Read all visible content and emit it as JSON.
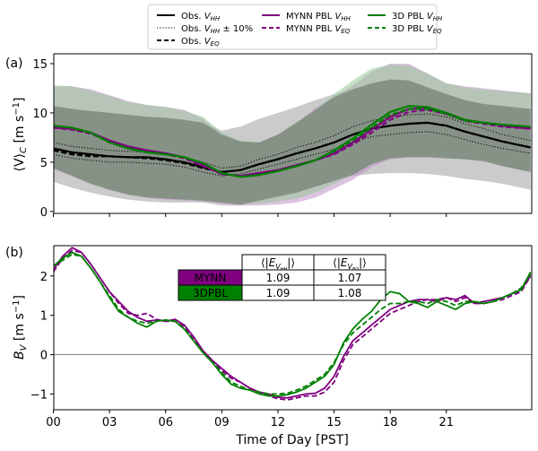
{
  "chart_data": [
    {
      "panel_label": "(a)",
      "type": "line",
      "xlabel": "",
      "ylabel": "⟨V⟩c [m s⁻¹]",
      "xlim": [
        0,
        25.5
      ],
      "ylim": [
        -0.2,
        16
      ],
      "xticks": [
        0,
        3,
        6,
        9,
        12,
        15,
        18,
        21
      ],
      "xtick_labels": [
        "00",
        "03",
        "06",
        "09",
        "12",
        "15",
        "18",
        "21"
      ],
      "yticks": [
        0,
        5,
        10,
        15
      ],
      "ytick_labels": [
        "0",
        "5",
        "10",
        "15"
      ],
      "grid": false,
      "x": [
        0,
        1,
        2,
        3,
        4,
        5,
        6,
        7,
        8,
        9,
        10,
        11,
        12,
        13,
        14,
        15,
        16,
        17,
        18,
        19,
        20,
        21,
        22,
        23,
        24,
        25.5
      ],
      "series": [
        {
          "name": "Obs. V_HH",
          "color": "#000000",
          "style": "solid",
          "values": [
            6.4,
            6.0,
            5.8,
            5.6,
            5.5,
            5.5,
            5.3,
            5.0,
            4.5,
            4.0,
            4.2,
            4.8,
            5.3,
            5.9,
            6.4,
            7.0,
            7.8,
            8.4,
            8.7,
            8.9,
            9.0,
            8.7,
            8.1,
            7.6,
            7.1,
            6.5
          ]
        },
        {
          "name": "Obs. V_HH ± 10% (upper)",
          "color": "#000000",
          "style": "dotted",
          "values": [
            7.0,
            6.6,
            6.4,
            6.2,
            6.1,
            6.0,
            5.8,
            5.5,
            5.0,
            4.4,
            4.6,
            5.3,
            5.8,
            6.5,
            7.0,
            7.7,
            8.6,
            9.2,
            9.6,
            9.8,
            9.9,
            9.6,
            8.9,
            8.4,
            7.8,
            7.2
          ]
        },
        {
          "name": "Obs. V_HH ± 10% (lower)",
          "color": "#000000",
          "style": "dotted",
          "values": [
            5.8,
            5.4,
            5.2,
            5.0,
            5.0,
            4.9,
            4.8,
            4.5,
            4.0,
            3.6,
            3.8,
            4.3,
            4.8,
            5.3,
            5.8,
            6.3,
            7.0,
            7.6,
            7.8,
            8.0,
            8.1,
            7.8,
            7.3,
            6.8,
            6.4,
            5.9
          ]
        },
        {
          "name": "Obs. V_EQ",
          "color": "#000000",
          "style": "dashed",
          "values": [
            6.2,
            5.8,
            5.6,
            5.6,
            5.5,
            5.4,
            5.2,
            4.9,
            4.4,
            4.0,
            4.2,
            4.8,
            5.3,
            5.9,
            6.4,
            7.0,
            7.8,
            8.4,
            8.7,
            8.9,
            9.0,
            8.7,
            8.1,
            7.6,
            7.1,
            6.5
          ]
        },
        {
          "name": "MYNN PBL V_HH",
          "color": "#800080",
          "style": "solid",
          "values": [
            8.5,
            8.4,
            8.0,
            7.2,
            6.6,
            6.2,
            5.9,
            5.5,
            4.7,
            3.8,
            3.6,
            3.9,
            4.2,
            4.7,
            5.2,
            5.9,
            7.0,
            8.3,
            9.6,
            10.4,
            10.5,
            10.0,
            9.3,
            9.0,
            8.7,
            8.4
          ]
        },
        {
          "name": "MYNN PBL V_EQ",
          "color": "#800080",
          "style": "dashed",
          "values": [
            8.5,
            8.3,
            7.9,
            7.1,
            6.5,
            6.1,
            5.8,
            5.4,
            4.6,
            3.8,
            3.6,
            3.9,
            4.2,
            4.7,
            5.2,
            5.8,
            6.8,
            8.0,
            9.3,
            10.1,
            10.3,
            9.9,
            9.2,
            8.9,
            8.6,
            8.4
          ]
        },
        {
          "name": "3D PBL V_HH",
          "color": "#008000",
          "style": "solid",
          "values": [
            8.7,
            8.5,
            8.0,
            7.0,
            6.4,
            6.0,
            5.8,
            5.5,
            4.9,
            3.9,
            3.5,
            3.7,
            4.1,
            4.6,
            5.2,
            6.2,
            7.4,
            8.8,
            10.1,
            10.7,
            10.6,
            10.0,
            9.3,
            9.0,
            8.8,
            8.6
          ]
        },
        {
          "name": "3D PBL V_EQ",
          "color": "#008000",
          "style": "dashed",
          "values": [
            8.7,
            8.5,
            8.0,
            7.0,
            6.4,
            6.0,
            5.8,
            5.5,
            4.9,
            3.9,
            3.5,
            3.7,
            4.1,
            4.6,
            5.2,
            6.1,
            7.2,
            8.5,
            9.8,
            10.4,
            10.4,
            9.9,
            9.2,
            9.0,
            8.8,
            8.6
          ]
        }
      ],
      "bands": [
        {
          "name": "Obs. spread",
          "color": "#a0a0a0",
          "upper": [
            10.7,
            10.4,
            10.2,
            10.0,
            9.8,
            9.6,
            9.5,
            9.3,
            9.0,
            8.2,
            8.6,
            9.4,
            10.0,
            10.6,
            11.3,
            11.9,
            12.4,
            13.0,
            13.4,
            13.3,
            12.6,
            11.9,
            11.3,
            10.9,
            10.7,
            10.4
          ],
          "lower": [
            3.0,
            2.4,
            1.9,
            1.5,
            1.2,
            1.0,
            0.9,
            0.9,
            0.9,
            0.6,
            0.6,
            1.1,
            1.5,
            1.9,
            2.5,
            3.1,
            3.6,
            3.8,
            3.9,
            3.9,
            3.8,
            3.6,
            3.3,
            3.1,
            2.8,
            2.2
          ]
        },
        {
          "name": "MYNN PBL spread",
          "color": "#c090c8",
          "upper": [
            12.7,
            12.7,
            12.4,
            11.8,
            11.2,
            10.8,
            10.6,
            10.3,
            9.4,
            7.8,
            7.1,
            7.0,
            7.8,
            9.0,
            10.5,
            11.6,
            12.8,
            14.2,
            15.0,
            15.0,
            14.0,
            13.0,
            12.7,
            12.5,
            12.3,
            12.0
          ],
          "lower": [
            4.3,
            3.6,
            2.8,
            2.2,
            1.7,
            1.4,
            1.2,
            1.1,
            1.0,
            0.8,
            0.6,
            0.6,
            0.7,
            0.9,
            1.4,
            2.3,
            3.2,
            4.5,
            5.3,
            5.5,
            5.5,
            5.4,
            5.3,
            5.1,
            4.6,
            4.0
          ]
        },
        {
          "name": "3D PBL spread",
          "color": "#98c898",
          "upper": [
            12.8,
            12.7,
            12.3,
            11.7,
            11.1,
            10.8,
            10.6,
            10.2,
            9.6,
            8.0,
            7.2,
            7.0,
            7.8,
            9.1,
            10.3,
            11.9,
            13.3,
            14.5,
            14.9,
            14.8,
            14.0,
            13.0,
            12.6,
            12.4,
            12.2,
            12.0
          ],
          "lower": [
            4.4,
            3.6,
            2.8,
            2.2,
            1.7,
            1.4,
            1.3,
            1.2,
            1.1,
            0.9,
            0.7,
            0.8,
            1.0,
            1.3,
            1.9,
            2.8,
            3.7,
            4.8,
            5.4,
            5.5,
            5.5,
            5.4,
            5.3,
            5.1,
            4.6,
            4.0
          ]
        }
      ],
      "legend": {
        "placement": "top-center (above plot)",
        "entries": [
          {
            "label": "Obs. V",
            "sub": "HH",
            "suffix": "",
            "color": "#000000",
            "style": "solid"
          },
          {
            "label": "Obs. V",
            "sub": "HH",
            "suffix": " ± 10%",
            "color": "#000000",
            "style": "dotted"
          },
          {
            "label": "Obs. V",
            "sub": "EQ",
            "suffix": "",
            "color": "#000000",
            "style": "dashed"
          },
          {
            "label": "MYNN PBL V",
            "sub": "HH",
            "suffix": "",
            "color": "#800080",
            "style": "solid"
          },
          {
            "label": "MYNN PBL V",
            "sub": "EQ",
            "suffix": "",
            "color": "#800080",
            "style": "dashed"
          },
          {
            "label": "3D PBL V",
            "sub": "HH",
            "suffix": "",
            "color": "#008000",
            "style": "solid"
          },
          {
            "label": "3D PBL V",
            "sub": "EQ",
            "suffix": "",
            "color": "#008000",
            "style": "dashed"
          }
        ]
      }
    },
    {
      "panel_label": "(b)",
      "type": "line",
      "xlabel": "Time of Day [PST]",
      "ylabel": "B_V [m s⁻¹]",
      "xlim": [
        0,
        25.5
      ],
      "ylim": [
        -1.4,
        2.77
      ],
      "xticks": [
        0,
        3,
        6,
        9,
        12,
        15,
        18,
        21
      ],
      "xtick_labels": [
        "00",
        "03",
        "06",
        "09",
        "12",
        "15",
        "18",
        "21"
      ],
      "yticks": [
        -1,
        0,
        1,
        2
      ],
      "ytick_labels": [
        "−1",
        "0",
        "1",
        "2"
      ],
      "hline": 0,
      "grid": false,
      "x": [
        0,
        0.5,
        1,
        1.5,
        2,
        2.5,
        3,
        3.5,
        4,
        4.5,
        5,
        5.5,
        6,
        6.5,
        7,
        7.5,
        8,
        8.5,
        9,
        9.5,
        10,
        10.5,
        11,
        11.5,
        12,
        12.5,
        13,
        13.5,
        14,
        14.5,
        15,
        15.5,
        16,
        16.5,
        17,
        17.5,
        18,
        18.5,
        19,
        19.5,
        20,
        20.5,
        21,
        21.5,
        22,
        22.5,
        23,
        23.5,
        24,
        24.5,
        25,
        25.5
      ],
      "series": [
        {
          "name": "MYNN PBL V_HH",
          "color": "#800080",
          "style": "solid",
          "values": [
            2.15,
            2.5,
            2.72,
            2.6,
            2.3,
            1.95,
            1.6,
            1.35,
            1.1,
            0.95,
            0.85,
            0.88,
            0.85,
            0.9,
            0.75,
            0.45,
            0.1,
            -0.15,
            -0.35,
            -0.55,
            -0.7,
            -0.85,
            -0.95,
            -1.0,
            -1.08,
            -1.1,
            -1.05,
            -1.0,
            -0.98,
            -0.85,
            -0.55,
            -0.05,
            0.35,
            0.55,
            0.75,
            0.95,
            1.15,
            1.25,
            1.35,
            1.4,
            1.4,
            1.35,
            1.45,
            1.4,
            1.5,
            1.3,
            1.35,
            1.4,
            1.45,
            1.55,
            1.65,
            2.0
          ]
        },
        {
          "name": "MYNN PBL V_EQ",
          "color": "#800080",
          "style": "dashed",
          "values": [
            2.1,
            2.45,
            2.65,
            2.6,
            2.3,
            1.95,
            1.6,
            1.3,
            1.05,
            1.0,
            1.05,
            0.9,
            0.85,
            0.85,
            0.7,
            0.4,
            0.05,
            -0.2,
            -0.4,
            -0.6,
            -0.7,
            -0.85,
            -0.95,
            -1.05,
            -1.12,
            -1.15,
            -1.1,
            -1.05,
            -1.05,
            -0.95,
            -0.7,
            -0.15,
            0.25,
            0.45,
            0.65,
            0.85,
            1.05,
            1.15,
            1.25,
            1.35,
            1.4,
            1.4,
            1.45,
            1.35,
            1.45,
            1.3,
            1.3,
            1.35,
            1.4,
            1.5,
            1.6,
            2.0
          ]
        },
        {
          "name": "3D PBL V_HH",
          "color": "#008000",
          "style": "solid",
          "values": [
            2.25,
            2.45,
            2.6,
            2.5,
            2.2,
            1.85,
            1.45,
            1.1,
            0.95,
            0.8,
            0.7,
            0.85,
            0.88,
            0.85,
            0.65,
            0.35,
            0.05,
            -0.2,
            -0.5,
            -0.75,
            -0.85,
            -0.9,
            -1.0,
            -1.05,
            -1.05,
            -1.02,
            -0.95,
            -0.85,
            -0.7,
            -0.55,
            -0.25,
            0.3,
            0.65,
            0.9,
            1.1,
            1.4,
            1.6,
            1.55,
            1.35,
            1.3,
            1.2,
            1.35,
            1.25,
            1.15,
            1.3,
            1.35,
            1.3,
            1.35,
            1.45,
            1.55,
            1.65,
            2.1
          ]
        },
        {
          "name": "3D PBL V_EQ",
          "color": "#008000",
          "style": "dashed",
          "values": [
            2.25,
            2.4,
            2.55,
            2.5,
            2.2,
            1.85,
            1.5,
            1.15,
            0.95,
            0.85,
            0.8,
            0.85,
            0.88,
            0.85,
            0.65,
            0.35,
            0.05,
            -0.2,
            -0.45,
            -0.7,
            -0.8,
            -0.9,
            -0.95,
            -1.0,
            -1.0,
            -0.98,
            -0.9,
            -0.8,
            -0.65,
            -0.5,
            -0.2,
            0.25,
            0.55,
            0.75,
            0.95,
            1.15,
            1.3,
            1.3,
            1.35,
            1.35,
            1.3,
            1.4,
            1.35,
            1.25,
            1.35,
            1.35,
            1.3,
            1.35,
            1.45,
            1.55,
            1.7,
            2.05
          ]
        }
      ],
      "table": {
        "header": [
          "",
          "⟨|E_VHH|⟩",
          "⟨|E_VEQ|⟩"
        ],
        "rows": [
          {
            "label": "MYNN",
            "color": "#800080",
            "values": [
              "1.09",
              "1.07"
            ]
          },
          {
            "label": "3DPBL",
            "color": "#008000",
            "values": [
              "1.09",
              "1.08"
            ]
          }
        ]
      }
    }
  ]
}
